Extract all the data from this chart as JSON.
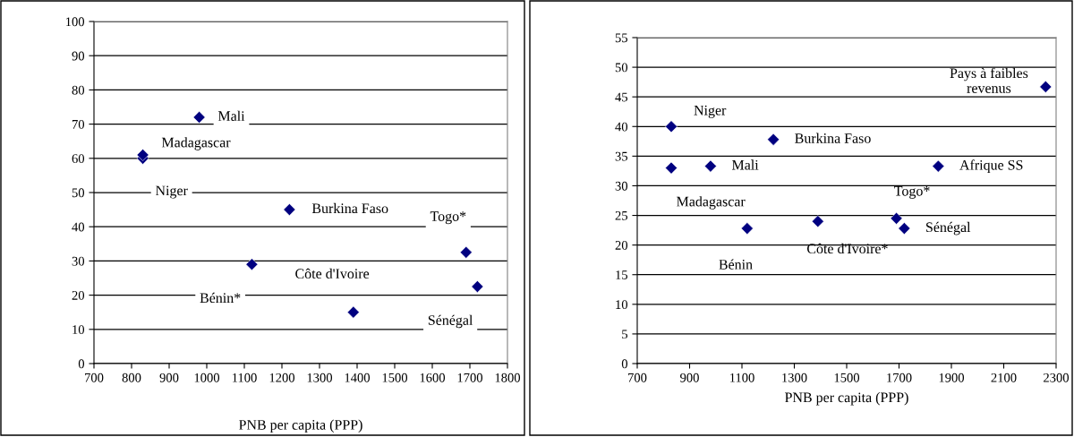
{
  "chart_data": [
    {
      "type": "scatter",
      "xlabel": "PNB per capita (PPP)",
      "xlim": [
        700,
        1800
      ],
      "xticks": [
        700,
        800,
        900,
        1000,
        1100,
        1200,
        1300,
        1400,
        1500,
        1600,
        1700,
        1800
      ],
      "ylim": [
        0,
        100
      ],
      "yticks": [
        0,
        10,
        20,
        30,
        40,
        50,
        60,
        70,
        80,
        90,
        100
      ],
      "grid": "y",
      "marker": "diamond",
      "series": [
        {
          "color": "#000080",
          "x": [
            830,
            830,
            980,
            1220,
            1120,
            1390,
            1690,
            1720
          ],
          "values": [
            60,
            61,
            72,
            45,
            29,
            15,
            32.5,
            22.5
          ]
        }
      ],
      "annotations": [
        {
          "text": "Niger",
          "x": 830,
          "y": 60
        },
        {
          "text": "Madagascar",
          "x": 830,
          "y": 61
        },
        {
          "text": "Mali",
          "x": 980,
          "y": 72
        },
        {
          "text": "Burkina Faso",
          "x": 1220,
          "y": 45
        },
        {
          "text": "Bénin*",
          "x": 1120,
          "y": 29
        },
        {
          "text": "Côte d'Ivoire",
          "x": 1390,
          "y": 15
        },
        {
          "text": "Togo*",
          "x": 1690,
          "y": 32.5
        },
        {
          "text": "Sénégal",
          "x": 1720,
          "y": 22.5
        }
      ]
    },
    {
      "type": "scatter",
      "xlabel": "PNB per capita (PPP)",
      "xlim": [
        700,
        2300
      ],
      "xticks": [
        700,
        900,
        1100,
        1300,
        1500,
        1700,
        1900,
        2100,
        2300
      ],
      "ylim": [
        0,
        55
      ],
      "yticks": [
        0,
        5,
        10,
        15,
        20,
        25,
        30,
        35,
        40,
        45,
        50,
        55
      ],
      "grid": "y",
      "marker": "diamond",
      "series": [
        {
          "color": "#000080",
          "x": [
            830,
            830,
            980,
            1220,
            1120,
            1390,
            1690,
            1720,
            1850,
            2260
          ],
          "values": [
            40,
            33,
            33.3,
            37.8,
            22.8,
            24,
            24.5,
            22.8,
            33.3,
            46.7
          ]
        }
      ],
      "annotations": [
        {
          "text": "Niger",
          "x": 830,
          "y": 40
        },
        {
          "text": "Madagascar",
          "x": 830,
          "y": 33
        },
        {
          "text": "Mali",
          "x": 980,
          "y": 33.3
        },
        {
          "text": "Burkina Faso",
          "x": 1220,
          "y": 37.8
        },
        {
          "text": "Bénin",
          "x": 1120,
          "y": 22.8
        },
        {
          "text": "Côte d'Ivoire*",
          "x": 1390,
          "y": 24
        },
        {
          "text": "Togo*",
          "x": 1690,
          "y": 24.5
        },
        {
          "text": "Sénégal",
          "x": 1720,
          "y": 22.8
        },
        {
          "text": "Afrique SS",
          "x": 1850,
          "y": 33.3
        },
        {
          "text": "Pays à faibles\nrevenus",
          "x": 2260,
          "y": 46.7
        }
      ]
    }
  ]
}
